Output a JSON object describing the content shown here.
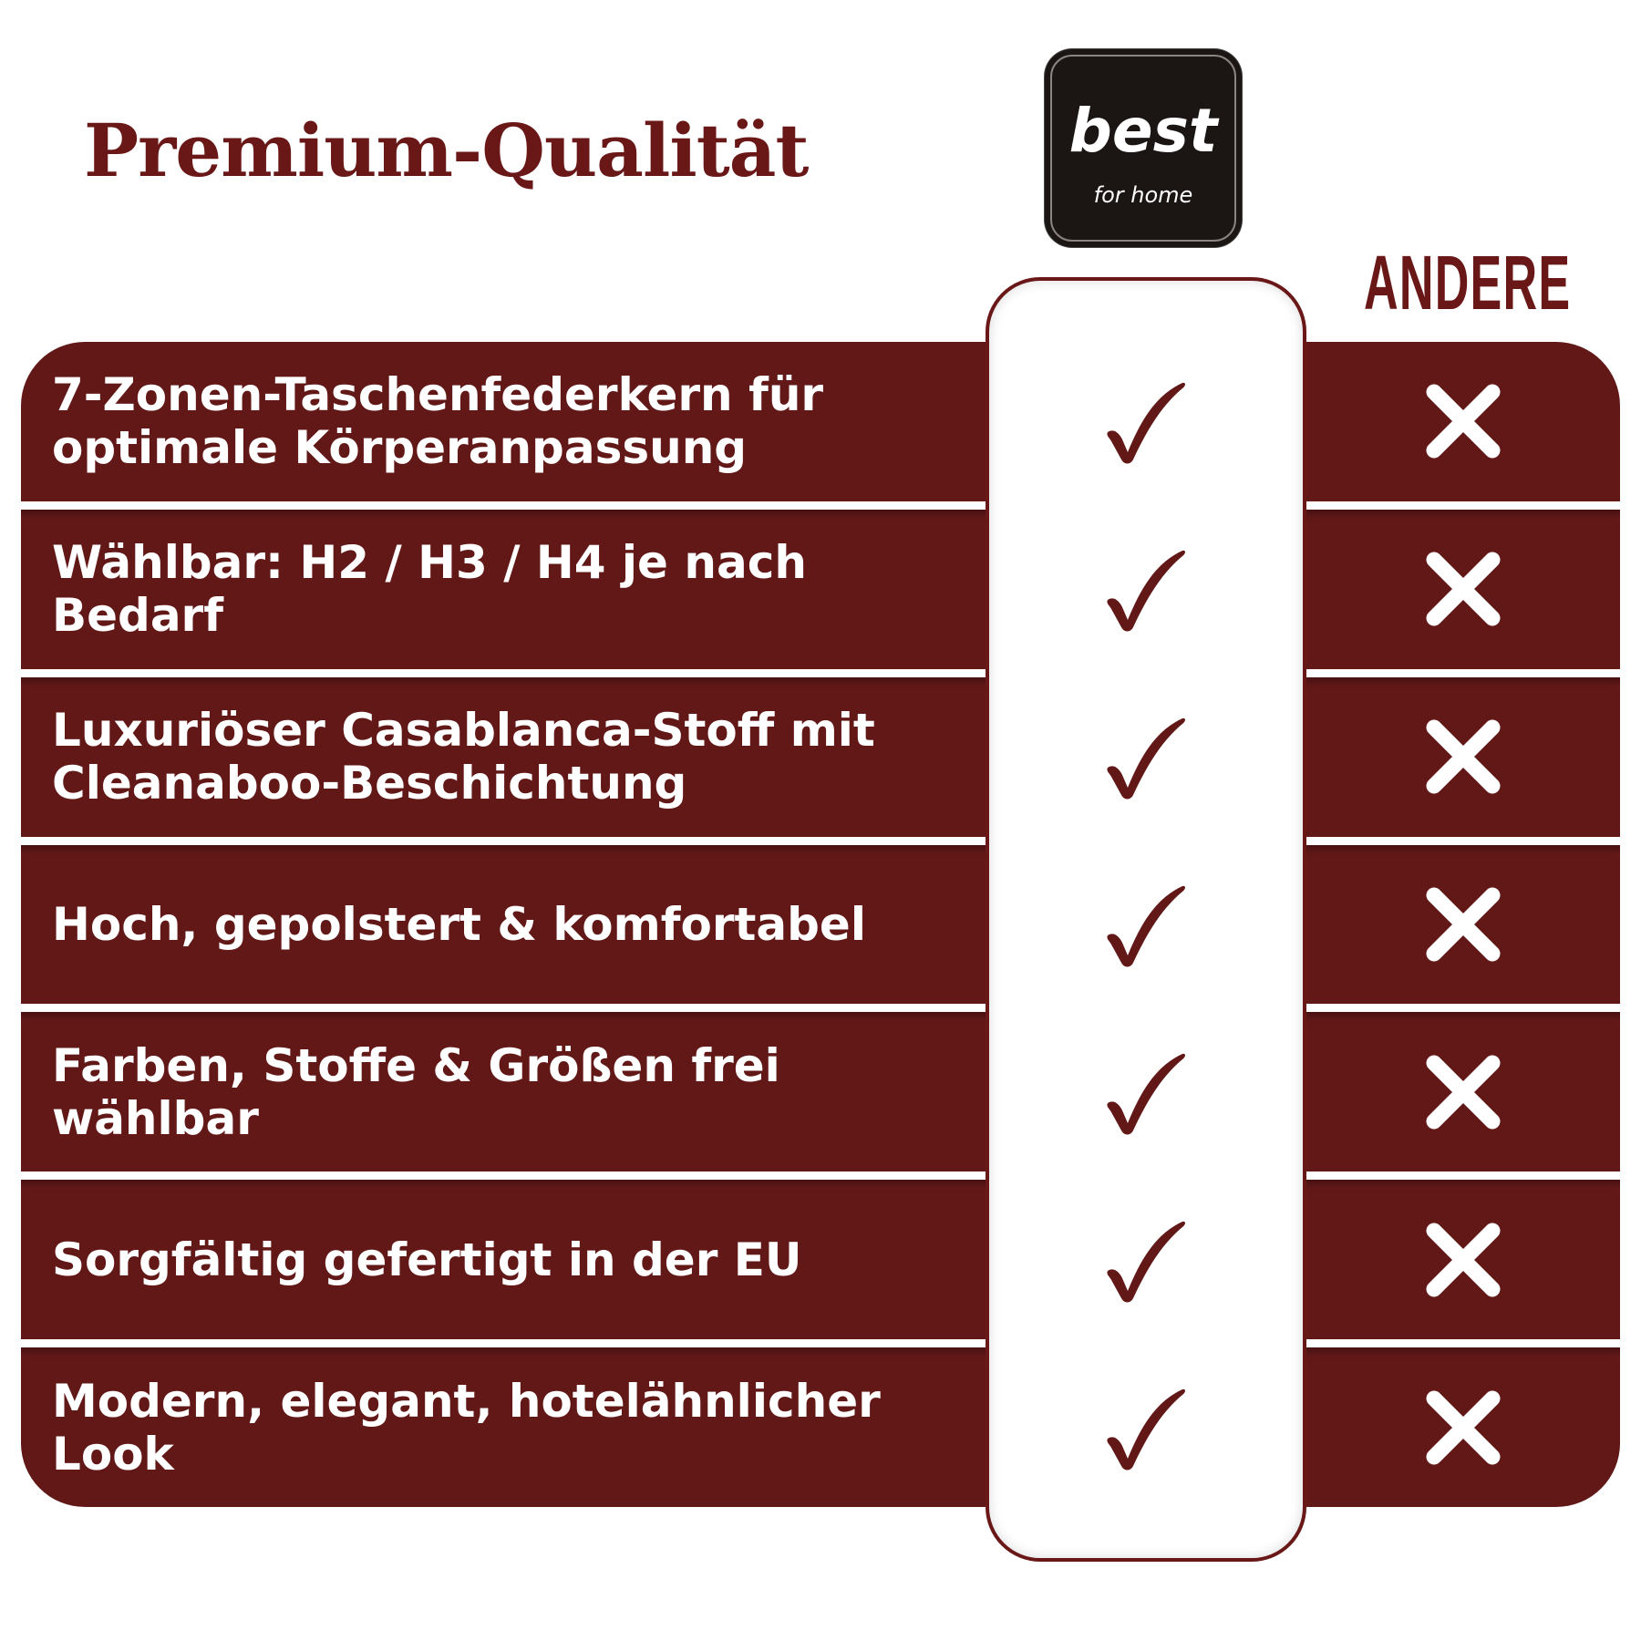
{
  "title": "Premium-Qualität",
  "logo": {
    "text": "best",
    "subtext": "for home"
  },
  "compare_column_label": "ANDERE",
  "colors": {
    "brand": "#631818",
    "logo_bg": "#1b1514"
  },
  "rows": [
    {
      "feature": "7-Zonen-Taschenfederkern für optimale Körperanpassung",
      "best": "check-icon",
      "andere": "x-icon"
    },
    {
      "feature": "Wählbar: H2 / H3 / H4 je nach Bedarf",
      "best": "check-icon",
      "andere": "x-icon"
    },
    {
      "feature": "Luxuriöser Casablanca-Stoff mit Cleanaboo-Beschichtung",
      "best": "check-icon",
      "andere": "x-icon"
    },
    {
      "feature": "Hoch, gepolstert & komfortabel",
      "best": "check-icon",
      "andere": "x-icon"
    },
    {
      "feature": "Farben, Stoffe & Größen frei wählbar",
      "best": "check-icon",
      "andere": "x-icon"
    },
    {
      "feature": "Sorgfältig gefertigt in der EU",
      "best": "check-icon",
      "andere": "x-icon"
    },
    {
      "feature": "Modern, elegant, hotelähnlicher Look",
      "best": "check-icon",
      "andere": "x-icon"
    }
  ]
}
